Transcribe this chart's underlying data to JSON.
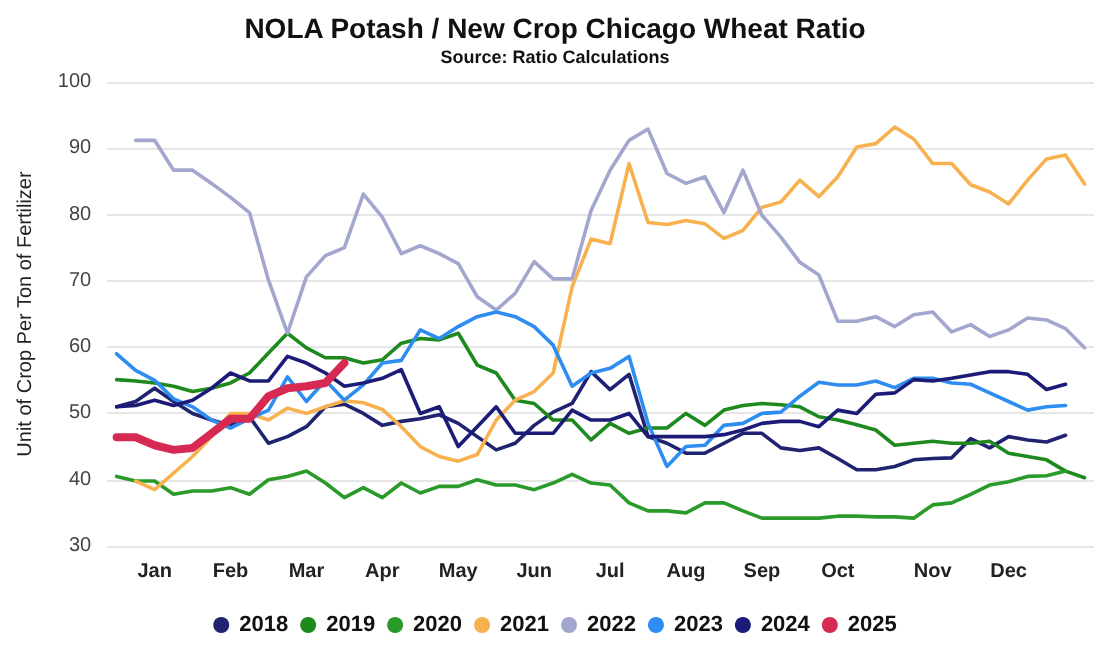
{
  "chart_data": {
    "type": "line",
    "title": "NOLA Potash / New Crop Chicago Wheat Ratio",
    "subtitle": "Source: Ratio Calculations",
    "ylabel": "Unit of Crop Per Ton of Fertilizer",
    "categories": [
      null,
      null,
      "Jan",
      null,
      null,
      null,
      "Feb",
      null,
      null,
      null,
      "Mar",
      null,
      null,
      null,
      "Apr",
      null,
      null,
      null,
      "May",
      null,
      null,
      null,
      "Jun",
      null,
      null,
      null,
      "Jul",
      null,
      null,
      null,
      "Aug",
      null,
      null,
      null,
      "Sep",
      null,
      null,
      null,
      "Oct",
      null,
      null,
      null,
      null,
      "Nov",
      null,
      null,
      null,
      "Dec",
      null,
      null,
      null,
      null
    ],
    "series": [
      {
        "name": "2018",
        "color": "#1f2370",
        "values": [
          51,
          51.8,
          53.8,
          51.8,
          50,
          49,
          48.2,
          49.5,
          45.5,
          46.5,
          48,
          51,
          51.4,
          50,
          48.2,
          48.8,
          49.2,
          49.8,
          48.5,
          46.5,
          44.5,
          45.5,
          48.2,
          50.2,
          51.5,
          56.3,
          53.6,
          55.9,
          46.5,
          45.5,
          44,
          44,
          45.5,
          47,
          47,
          44.8,
          44.4,
          44.8,
          43.2,
          41.5,
          41.5,
          42,
          43,
          43.2,
          43.3,
          46.2,
          44.8,
          46.5,
          46,
          45.7,
          46.7,
          null
        ]
      },
      {
        "name": "2019",
        "color": "#1e8a1e",
        "values": [
          55.1,
          54.9,
          54.6,
          54.1,
          53.3,
          53.8,
          54.6,
          56.1,
          59.1,
          62.1,
          59.9,
          58.4,
          58.4,
          57.6,
          58.1,
          60.6,
          61.3,
          61.1,
          62.1,
          57.3,
          56.1,
          52,
          51.5,
          49,
          49,
          46,
          48.5,
          47,
          47.8,
          47.8,
          50,
          48.2,
          50.5,
          51.2,
          51.5,
          51.3,
          51,
          49.5,
          49,
          48.3,
          47.5,
          45.2,
          45.5,
          45.8,
          45.5,
          45.5,
          45.8,
          44,
          43.5,
          43,
          41.3,
          40.3
        ]
      },
      {
        "name": "2020",
        "color": "#2a9a2a",
        "values": [
          40.5,
          39.8,
          39.8,
          37.8,
          38.3,
          38.3,
          38.8,
          37.8,
          40,
          40.5,
          41.3,
          39.5,
          37.3,
          38.8,
          37.3,
          39.5,
          38,
          39,
          39,
          40,
          39.2,
          39.2,
          38.5,
          39.5,
          40.8,
          39.5,
          39.2,
          36.5,
          35.3,
          35.3,
          35,
          36.5,
          36.5,
          35.3,
          34.2,
          34.2,
          34.2,
          34.2,
          34.5,
          34.5,
          34.4,
          34.4,
          34.2,
          36.2,
          36.5,
          37.8,
          39.2,
          39.7,
          40.5,
          40.6,
          41.3,
          null
        ]
      },
      {
        "name": "2021",
        "color": "#f7b24f",
        "values": [
          null,
          39.8,
          38.5,
          41,
          43.5,
          46.5,
          50,
          50,
          49,
          50.8,
          50,
          51,
          51.9,
          51.6,
          50.6,
          48,
          45,
          43.5,
          42.8,
          43.8,
          49,
          52,
          53.3,
          56.1,
          69.1,
          76.3,
          75.6,
          87.7,
          78.8,
          78.5,
          79.1,
          78.6,
          76.4,
          77.6,
          81.1,
          81.9,
          85.2,
          82.7,
          85.7,
          90.2,
          90.7,
          93.2,
          91.4,
          87.7,
          87.7,
          84.5,
          83.4,
          81.6,
          85.2,
          88.4,
          89,
          84.6
        ]
      },
      {
        "name": "2022",
        "color": "#a3a6cf",
        "values": [
          null,
          91.2,
          91.2,
          86.7,
          86.7,
          84.7,
          82.6,
          80.3,
          70.1,
          62.1,
          70.6,
          73.8,
          75,
          83.1,
          79.6,
          74.1,
          75.3,
          74.1,
          72.6,
          67.6,
          65.6,
          68.1,
          72.9,
          70.3,
          70.3,
          80.6,
          86.7,
          91.2,
          92.9,
          86.2,
          84.7,
          85.7,
          80.3,
          86.7,
          79.9,
          76.6,
          72.8,
          70.9,
          63.9,
          63.9,
          64.6,
          63.1,
          64.9,
          65.3,
          62.3,
          63.4,
          61.6,
          62.6,
          64.4,
          64.1,
          62.8,
          59.9
        ]
      },
      {
        "name": "2023",
        "color": "#2e8df0",
        "values": [
          59,
          56.5,
          55,
          52.2,
          51,
          49,
          47.8,
          49.2,
          50.5,
          55.5,
          51.8,
          55,
          52,
          54.3,
          57.6,
          58,
          62.6,
          61.3,
          63.1,
          64.6,
          65.3,
          64.6,
          63.1,
          60.3,
          54.1,
          56.1,
          56.8,
          58.6,
          48.5,
          42,
          45,
          45.2,
          48.2,
          48.5,
          50,
          50.2,
          52.6,
          54.7,
          54.3,
          54.3,
          54.9,
          53.9,
          55.3,
          55.3,
          54.6,
          54.4,
          53.1,
          51.8,
          50.5,
          51,
          51.2,
          null
        ]
      },
      {
        "name": "2024",
        "color": "#1c1c78",
        "values": [
          51,
          51.2,
          52,
          51.2,
          52,
          53.8,
          56.1,
          54.9,
          54.9,
          58.6,
          57.6,
          56.1,
          54.1,
          54.6,
          55.3,
          56.6,
          50,
          51,
          45,
          48,
          51,
          47,
          47,
          47,
          50.5,
          49,
          49,
          50,
          46.5,
          46.5,
          46.5,
          46.5,
          46.8,
          47.5,
          48.5,
          48.8,
          48.8,
          48,
          50.5,
          50,
          52.9,
          53.1,
          55.1,
          54.9,
          55.3,
          55.8,
          56.3,
          56.3,
          55.9,
          53.6,
          54.4,
          null
        ]
      },
      {
        "name": "2025",
        "color": "#d62a52",
        "values": [
          46.4,
          46.4,
          45.2,
          44.5,
          44.8,
          47,
          49.2,
          49.2,
          52.6,
          53.8,
          54.1,
          54.6,
          57.6,
          null,
          null,
          null,
          null,
          null,
          null,
          null,
          null,
          null,
          null,
          null,
          null,
          null,
          null,
          null,
          null,
          null,
          null,
          null,
          null,
          null,
          null,
          null,
          null,
          null,
          null,
          null,
          null,
          null,
          null,
          null,
          null,
          null,
          null,
          null,
          null,
          null,
          null,
          null
        ]
      }
    ],
    "ylim": [
      30,
      100
    ],
    "yticks": [
      30,
      40,
      50,
      60,
      70,
      80,
      90,
      100
    ],
    "grid": "y",
    "legend": "bottom",
    "marker": "none",
    "line_style": "solid"
  }
}
